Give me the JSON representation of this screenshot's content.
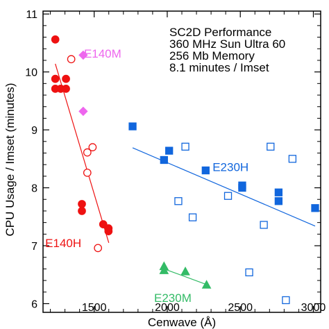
{
  "chart_data": {
    "type": "scatter",
    "title_lines": [
      "SC2D Performance",
      "360 MHz Sun Ultra 60",
      "256 Mb Memory",
      "8.1 minutes / Imset"
    ],
    "xlabel": "Cenwave (Å)",
    "ylabel": "CPU Usage / Imset  (minutes)",
    "xlim": [
      1150,
      3050
    ],
    "ylim": [
      5.85,
      11.05
    ],
    "xticks": [
      1500,
      2000,
      2500,
      3000
    ],
    "xtick_labels": [
      "1500",
      "2000",
      "2500",
      "3000"
    ],
    "yticks": [
      6,
      7,
      8,
      9,
      10,
      11
    ],
    "ytick_labels": [
      "6",
      "7",
      "8",
      "9",
      "10",
      "11"
    ],
    "grid": false,
    "series": [
      {
        "name": "E140H",
        "color": "#ee1111",
        "marker": "circle",
        "points": [
          {
            "x": 1234,
            "y": 10.56,
            "filled": true
          },
          {
            "x": 1234,
            "y": 9.88,
            "filled": true
          },
          {
            "x": 1234,
            "y": 9.71,
            "filled": true
          },
          {
            "x": 1271,
            "y": 9.71,
            "filled": true
          },
          {
            "x": 1307,
            "y": 9.88,
            "filled": true
          },
          {
            "x": 1307,
            "y": 9.71,
            "filled": true
          },
          {
            "x": 1416,
            "y": 7.72,
            "filled": true
          },
          {
            "x": 1416,
            "y": 7.6,
            "filled": true
          },
          {
            "x": 1562,
            "y": 7.37,
            "filled": true
          },
          {
            "x": 1598,
            "y": 7.3,
            "filled": true
          },
          {
            "x": 1598,
            "y": 7.25,
            "filled": true
          },
          {
            "x": 1343,
            "y": 10.22,
            "filled": false
          },
          {
            "x": 1453,
            "y": 8.61,
            "filled": false
          },
          {
            "x": 1489,
            "y": 8.7,
            "filled": false
          },
          {
            "x": 1453,
            "y": 8.26,
            "filled": false
          },
          {
            "x": 1526,
            "y": 6.96,
            "filled": false
          }
        ],
        "fit": [
          {
            "x": 1234,
            "y": 10.14
          },
          {
            "x": 1600,
            "y": 7.05
          }
        ]
      },
      {
        "name": "E140M",
        "color": "#ee66ee",
        "marker": "diamond",
        "points": [
          {
            "x": 1425,
            "y": 10.29,
            "filled": true
          },
          {
            "x": 1425,
            "y": 9.32,
            "filled": true
          }
        ],
        "fit": null
      },
      {
        "name": "E230H",
        "color": "#1166dd",
        "marker": "square",
        "points": [
          {
            "x": 1763,
            "y": 9.06,
            "filled": true
          },
          {
            "x": 1978,
            "y": 8.48,
            "filled": true
          },
          {
            "x": 2013,
            "y": 8.64,
            "filled": true
          },
          {
            "x": 2263,
            "y": 8.3,
            "filled": true
          },
          {
            "x": 2513,
            "y": 8.04,
            "filled": true
          },
          {
            "x": 2513,
            "y": 8.0,
            "filled": true
          },
          {
            "x": 2762,
            "y": 7.92,
            "filled": true
          },
          {
            "x": 2762,
            "y": 7.77,
            "filled": true
          },
          {
            "x": 3012,
            "y": 7.65,
            "filled": true
          },
          {
            "x": 2124,
            "y": 8.71,
            "filled": false
          },
          {
            "x": 2076,
            "y": 7.77,
            "filled": false
          },
          {
            "x": 2174,
            "y": 7.49,
            "filled": false
          },
          {
            "x": 2416,
            "y": 7.86,
            "filled": false
          },
          {
            "x": 2661,
            "y": 7.36,
            "filled": false
          },
          {
            "x": 2707,
            "y": 8.71,
            "filled": false
          },
          {
            "x": 2857,
            "y": 8.5,
            "filled": false
          },
          {
            "x": 2561,
            "y": 6.54,
            "filled": false
          },
          {
            "x": 2812,
            "y": 6.06,
            "filled": false
          }
        ],
        "fit": [
          {
            "x": 1763,
            "y": 8.69
          },
          {
            "x": 3012,
            "y": 7.34
          }
        ]
      },
      {
        "name": "E230M",
        "color": "#33bb66",
        "marker": "triangle",
        "points": [
          {
            "x": 1978,
            "y": 6.64,
            "filled": true
          },
          {
            "x": 1978,
            "y": 6.57,
            "filled": true
          },
          {
            "x": 2124,
            "y": 6.55,
            "filled": true
          },
          {
            "x": 2269,
            "y": 6.32,
            "filled": true
          }
        ],
        "fit": [
          {
            "x": 1978,
            "y": 6.6
          },
          {
            "x": 2269,
            "y": 6.33
          }
        ]
      }
    ],
    "annotations": [
      {
        "text": "E140M",
        "x": 1430,
        "y": 10.32,
        "color": "#ee66ee"
      },
      {
        "text": "E230H",
        "x": 2310,
        "y": 8.36,
        "color": "#1166dd"
      },
      {
        "text": "E140H",
        "x": 1165,
        "y": 7.05,
        "color": "#ee1111"
      },
      {
        "text": "E230M",
        "x": 1910,
        "y": 6.1,
        "color": "#33bb66"
      }
    ]
  }
}
